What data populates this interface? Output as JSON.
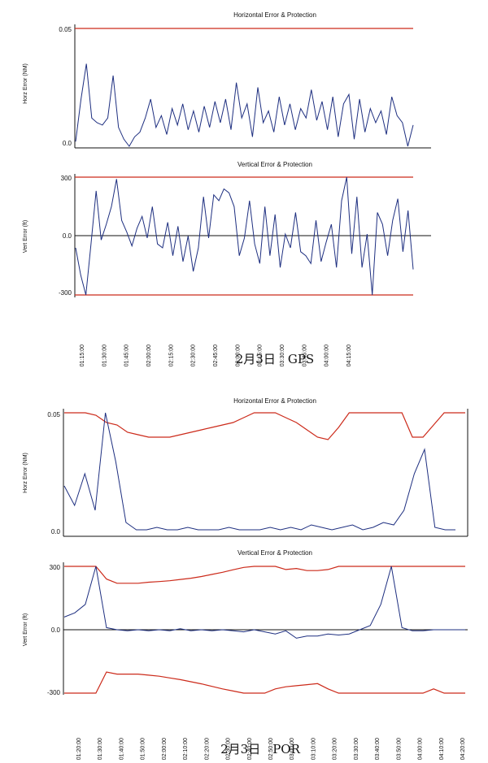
{
  "chart_data": [
    {
      "type": "line",
      "title": "Horizontal Error & Protection",
      "ylabel": "Horz Error (NM)",
      "yticks": [
        "0.05",
        "0.0"
      ],
      "ylim": [
        0,
        0.05
      ],
      "protection_level": 0.05,
      "series": [
        {
          "values": [
            0.002,
            0.02,
            0.035,
            0.012,
            0.01,
            0.009,
            0.012,
            0.03,
            0.008,
            0.003,
            0.0,
            0.004,
            0.006,
            0.012,
            0.02,
            0.008,
            0.013,
            0.005,
            0.016,
            0.009,
            0.018,
            0.007,
            0.015,
            0.006,
            0.017,
            0.008,
            0.019,
            0.01,
            0.02,
            0.007,
            0.027,
            0.012,
            0.018,
            0.004,
            0.025,
            0.01,
            0.015,
            0.006,
            0.021,
            0.009,
            0.018,
            0.007,
            0.016,
            0.012,
            0.024,
            0.011,
            0.019,
            0.007,
            0.021,
            0.004,
            0.018,
            0.022,
            0.003,
            0.02,
            0.006,
            0.016,
            0.01,
            0.015,
            0.005,
            0.021,
            0.013,
            0.01,
            0.0,
            0.009
          ]
        }
      ]
    },
    {
      "type": "line",
      "title": "Vertical Error & Protection",
      "ylabel": "Vert Error (ft)",
      "yticks": [
        "300",
        "0.0",
        "-300"
      ],
      "ylim": [
        -300,
        300
      ],
      "protection_level": 300,
      "series": [
        {
          "values": [
            -60,
            -200,
            -300,
            -40,
            230,
            -20,
            60,
            150,
            290,
            80,
            20,
            -50,
            40,
            100,
            -10,
            150,
            -40,
            -60,
            70,
            -100,
            50,
            -130,
            0,
            -180,
            -60,
            200,
            -10,
            210,
            180,
            240,
            220,
            150,
            -100,
            -10,
            180,
            -40,
            -140,
            150,
            -100,
            110,
            -160,
            10,
            -60,
            120,
            -80,
            -100,
            -140,
            80,
            -130,
            -30,
            60,
            -160,
            180,
            300,
            -90,
            200,
            -160,
            10,
            -300,
            120,
            60,
            -100,
            80,
            190,
            -80,
            130,
            -170
          ]
        }
      ],
      "xticks": [
        "01:15:00",
        "01:30:00",
        "01:45:00",
        "02:00:00",
        "02:15:00",
        "02:30:00",
        "02:45:00",
        "03:00:00",
        "03:15:00",
        "03:30:00",
        "03:45:00",
        "04:00:00",
        "04:15:00"
      ]
    },
    {
      "type": "line",
      "title": "Horizontal Error & Protection",
      "ylabel": "Horz Error (NM)",
      "yticks": [
        "0.05",
        "0.0"
      ],
      "ylim": [
        0,
        0.05
      ],
      "series": [
        {
          "values": [
            0.05,
            0.05,
            0.05,
            0.049,
            0.046,
            0.045,
            0.042,
            0.041,
            0.04,
            0.04,
            0.04,
            0.041,
            0.042,
            0.043,
            0.044,
            0.045,
            0.046,
            0.048,
            0.05,
            0.05,
            0.05,
            0.048,
            0.046,
            0.043,
            0.04,
            0.039,
            0.044,
            0.05,
            0.05,
            0.05,
            0.05,
            0.05,
            0.05,
            0.04,
            0.04,
            0.045,
            0.05,
            0.05,
            0.05
          ]
        },
        {
          "values": [
            0.02,
            0.012,
            0.025,
            0.01,
            0.05,
            0.03,
            0.005,
            0.002,
            0.002,
            0.003,
            0.002,
            0.002,
            0.003,
            0.002,
            0.002,
            0.002,
            0.003,
            0.002,
            0.002,
            0.002,
            0.003,
            0.002,
            0.003,
            0.002,
            0.004,
            0.003,
            0.002,
            0.003,
            0.004,
            0.002,
            0.003,
            0.005,
            0.004,
            0.01,
            0.025,
            0.035,
            0.003,
            0.002,
            0.002
          ]
        }
      ]
    },
    {
      "type": "line",
      "title": "Vertical Error & Protection",
      "ylabel": "Vert Error (ft)",
      "yticks": [
        "300",
        "0.0",
        "-300"
      ],
      "ylim": [
        -300,
        300
      ],
      "series": [
        {
          "values": [
            300,
            300,
            300,
            300,
            240,
            220,
            220,
            220,
            225,
            228,
            232,
            238,
            244,
            252,
            262,
            272,
            284,
            295,
            300,
            300,
            300,
            285,
            290,
            280,
            280,
            285,
            300,
            300,
            300,
            300,
            300,
            300,
            300,
            300,
            300,
            300,
            300,
            300,
            300
          ]
        },
        {
          "values": [
            -300,
            -300,
            -300,
            -300,
            -200,
            -210,
            -210,
            -210,
            -215,
            -220,
            -228,
            -236,
            -246,
            -256,
            -268,
            -280,
            -290,
            -300,
            -300,
            -300,
            -280,
            -270,
            -265,
            -260,
            -255,
            -280,
            -300,
            -300,
            -300,
            -300,
            -300,
            -300,
            -300,
            -300,
            -300,
            -280,
            -300,
            -300,
            -300
          ]
        },
        {
          "values": [
            60,
            80,
            120,
            300,
            10,
            0,
            -5,
            0,
            -5,
            0,
            -5,
            5,
            -5,
            0,
            -5,
            0,
            -5,
            -10,
            0,
            -10,
            -20,
            -5,
            -40,
            -30,
            -30,
            -20,
            -25,
            -20,
            0,
            20,
            120,
            300,
            10,
            -5,
            -5,
            0,
            0,
            0,
            0
          ]
        }
      ],
      "xticks": [
        "01:20:00",
        "01:30:00",
        "01:40:00",
        "01:50:00",
        "02:00:00",
        "02:10:00",
        "02:20:00",
        "02:30:00",
        "02:40:00",
        "02:50:00",
        "03:00:00",
        "03:10:00",
        "03:20:00",
        "03:30:00",
        "03:40:00",
        "03:50:00",
        "04:00:00",
        "04:10:00",
        "04:20:00"
      ]
    }
  ],
  "captions": {
    "gps": "2月3日　GPS",
    "por": "2月3日　POR"
  }
}
